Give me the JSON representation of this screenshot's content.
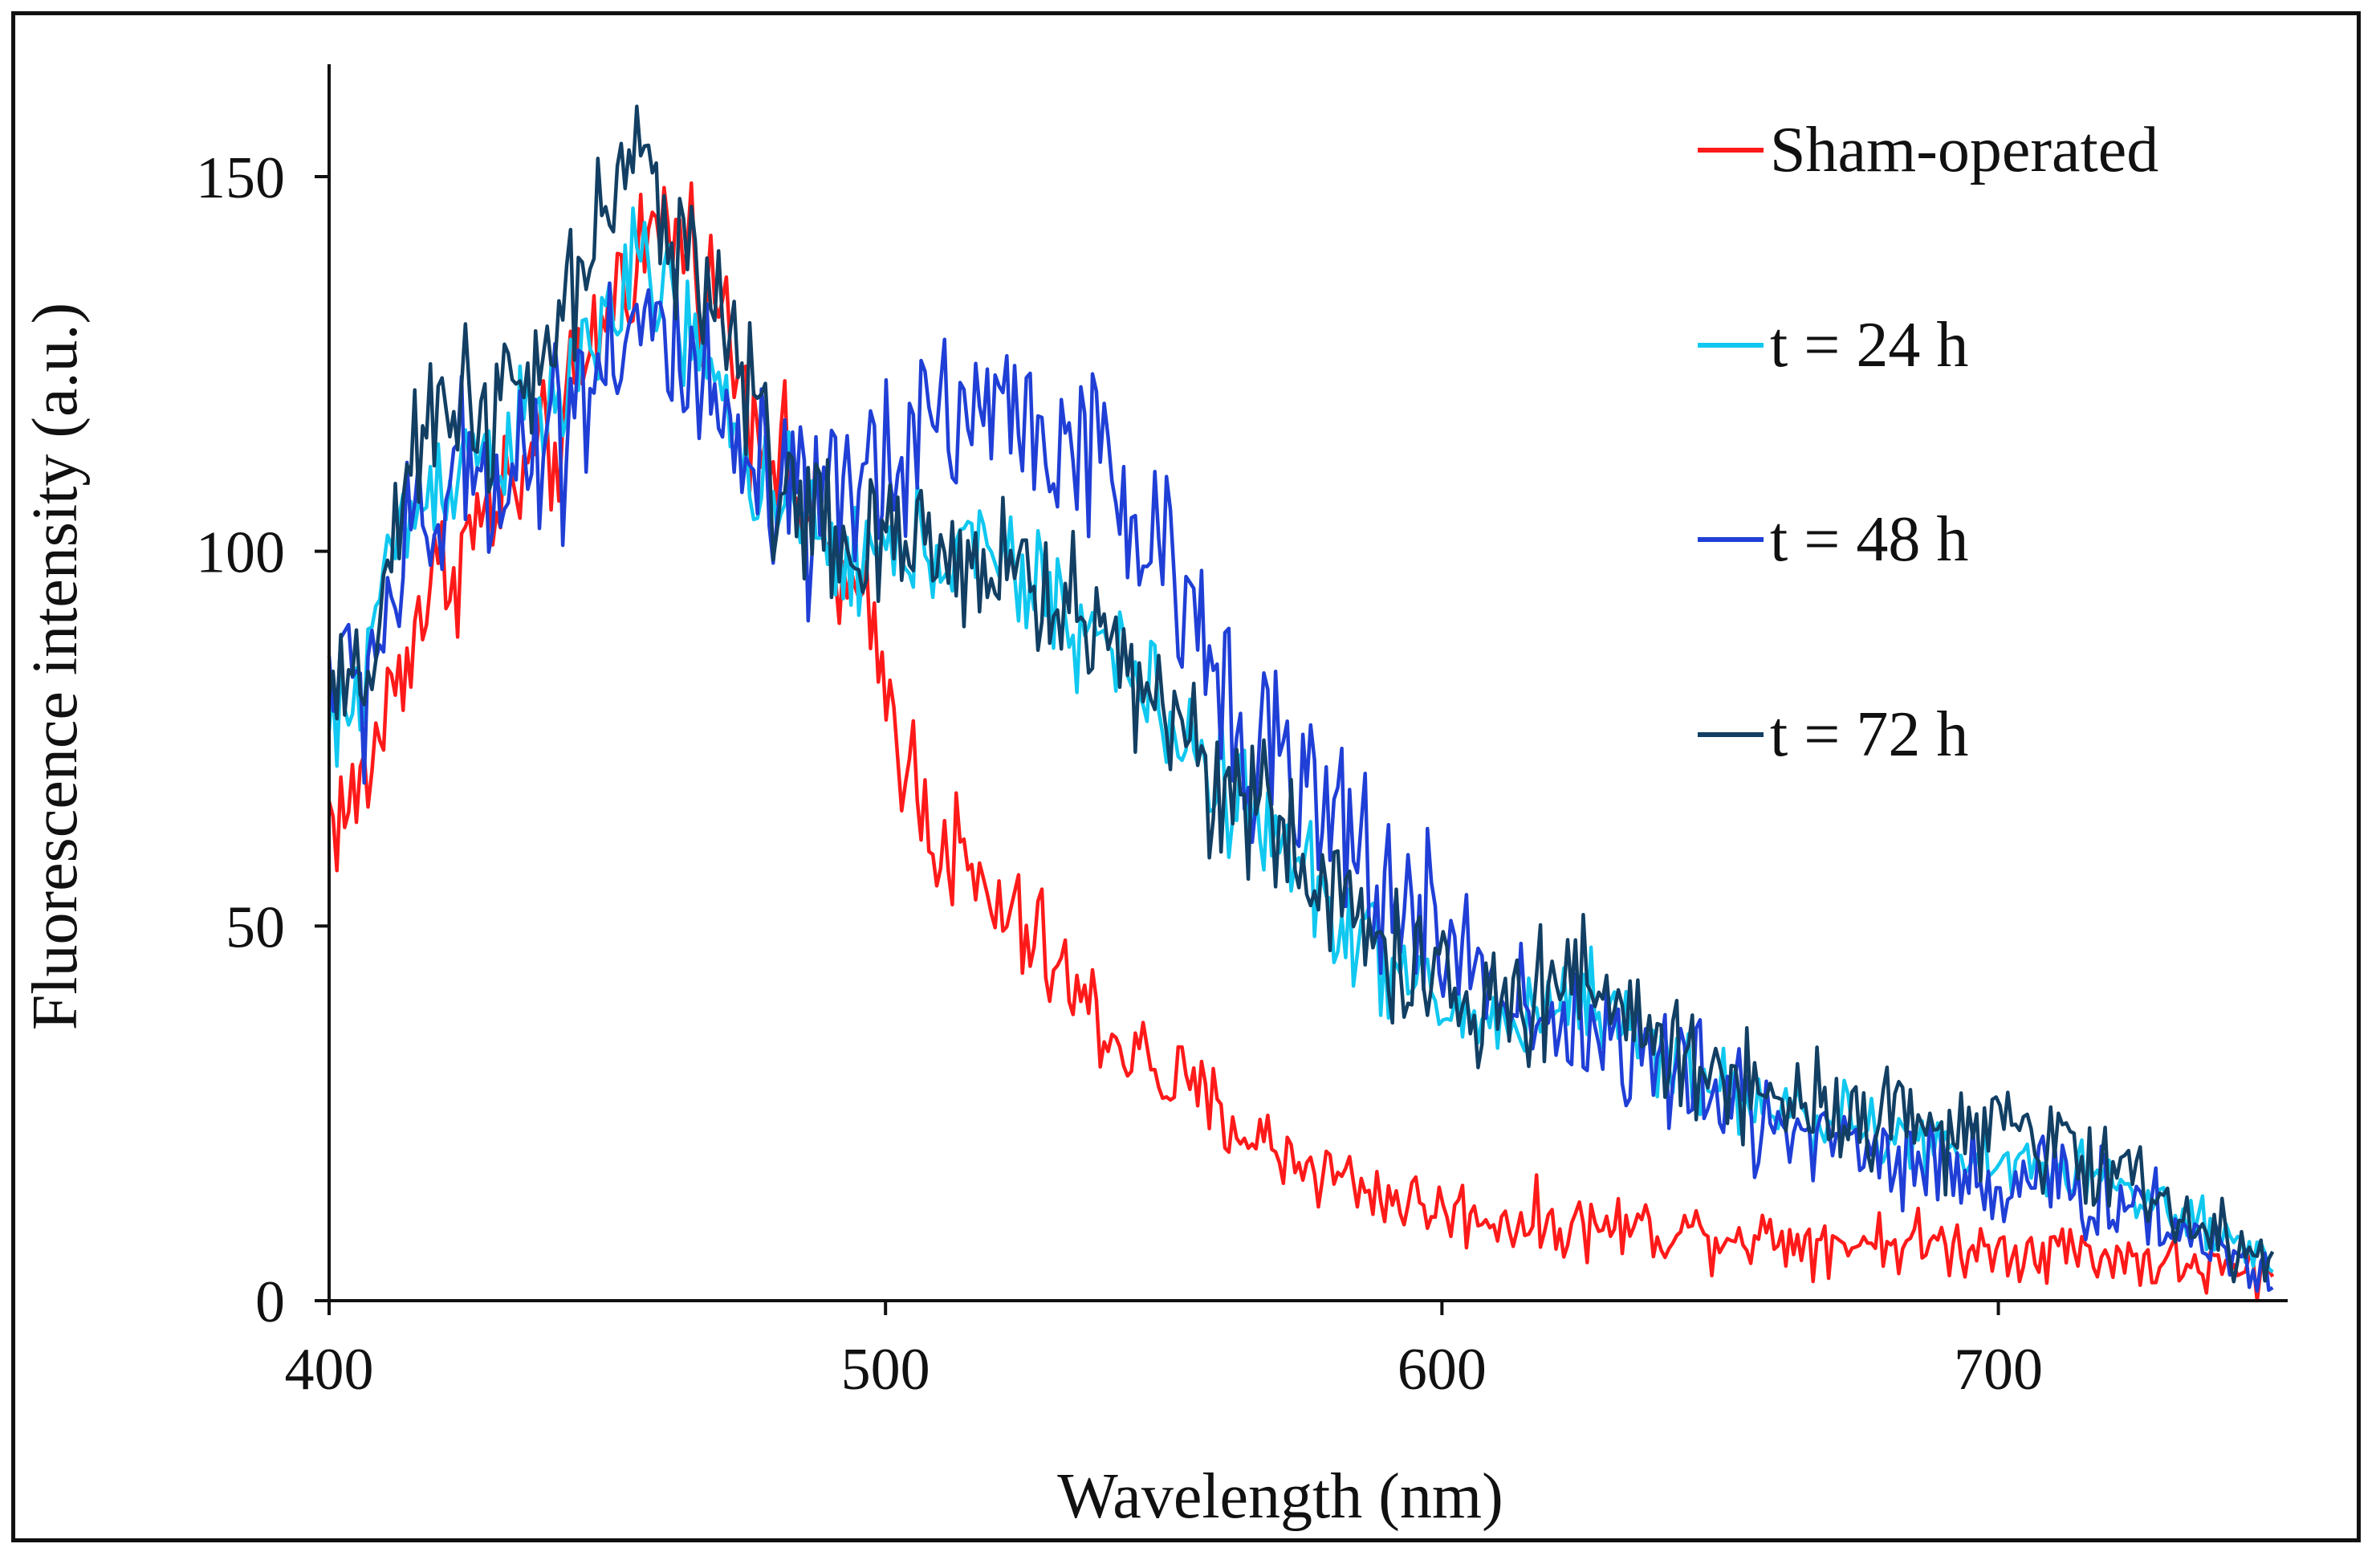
{
  "chart_data": {
    "type": "line",
    "xlabel": "Wavelength (nm)",
    "ylabel": "Fluorescence intensity (a.u.)",
    "xlim": [
      400,
      752
    ],
    "ylim": [
      0,
      165
    ],
    "xticks": [
      400,
      500,
      600,
      700
    ],
    "yticks": [
      0,
      50,
      100,
      150
    ],
    "grid": false,
    "legend_position": "top-right",
    "series": [
      {
        "name": "Sham-operated",
        "color": "#ff1a1a",
        "x": [
          400,
          405,
          410,
          415,
          420,
          430,
          440,
          445,
          450,
          455,
          460,
          465,
          470,
          475,
          480,
          485,
          490,
          495,
          500,
          505,
          510,
          515,
          520,
          525,
          530,
          535,
          540,
          545,
          550,
          560,
          570,
          580,
          590,
          600,
          610,
          620,
          630,
          640,
          650,
          660,
          670,
          680,
          690,
          700,
          710,
          720,
          730,
          740,
          750
        ],
        "values": [
          65,
          66,
          78,
          90,
          97,
          106,
          113,
          122,
          133,
          140,
          143,
          141,
          133,
          122,
          114,
          106,
          99,
          92,
          82,
          70,
          62,
          56,
          52,
          49,
          45,
          40,
          36,
          33,
          30,
          25,
          20,
          17,
          14,
          12,
          11,
          10,
          10,
          9.5,
          9,
          8.5,
          8,
          8,
          7.5,
          7,
          7,
          6,
          5,
          4,
          3
        ],
        "noise": 8
      },
      {
        "name": "t = 24 h",
        "color": "#10c8f0",
        "x": [
          400,
          405,
          410,
          415,
          420,
          425,
          430,
          440,
          445,
          450,
          455,
          460,
          465,
          470,
          475,
          480,
          485,
          490,
          495,
          500,
          505,
          510,
          515,
          520,
          525,
          530,
          535,
          540,
          545,
          550,
          560,
          570,
          580,
          590,
          600,
          610,
          620,
          625,
          630,
          640,
          650,
          660,
          670,
          680,
          690,
          700,
          710,
          720,
          730,
          740,
          750
        ],
        "values": [
          75,
          80,
          98,
          105,
          110,
          113,
          114,
          118,
          125,
          132,
          137,
          135,
          128,
          120,
          113,
          107,
          103,
          100,
          99,
          99,
          100,
          101,
          100,
          98,
          96,
          94,
          90,
          87,
          83,
          78,
          70,
          61,
          53,
          45,
          39,
          37,
          39,
          42,
          38,
          33,
          28,
          26,
          24,
          22,
          20,
          18,
          18,
          16,
          12,
          8,
          4
        ],
        "noise": 7
      },
      {
        "name": "t = 48 h",
        "color": "#1f3fd6",
        "x": [
          400,
          405,
          410,
          415,
          420,
          425,
          430,
          440,
          445,
          450,
          455,
          460,
          465,
          470,
          475,
          480,
          485,
          490,
          495,
          500,
          505,
          510,
          515,
          520,
          525,
          530,
          535,
          540,
          545,
          550,
          560,
          570,
          580,
          590,
          600,
          610,
          620,
          630,
          640,
          650,
          660,
          670,
          680,
          690,
          700,
          710,
          720,
          730,
          740,
          750
        ],
        "values": [
          85,
          80,
          92,
          100,
          105,
          110,
          112,
          115,
          122,
          128,
          131,
          128,
          122,
          115,
          110,
          106,
          103,
          104,
          108,
          113,
          117,
          119,
          119,
          119,
          118,
          116,
          113,
          109,
          103,
          97,
          85,
          72,
          63,
          55,
          48,
          42,
          38,
          35,
          31,
          27,
          24,
          22,
          20,
          18,
          16,
          15,
          14,
          11,
          7,
          3
        ],
        "noise": 11
      },
      {
        "name": "t = 72 h",
        "color": "#123f63",
        "x": [
          400,
          405,
          410,
          415,
          420,
          425,
          430,
          440,
          445,
          450,
          455,
          460,
          465,
          470,
          475,
          480,
          485,
          490,
          495,
          500,
          505,
          510,
          515,
          520,
          525,
          530,
          535,
          540,
          545,
          550,
          560,
          570,
          580,
          590,
          600,
          610,
          620,
          625,
          630,
          640,
          650,
          660,
          670,
          680,
          690,
          700,
          710,
          720,
          730,
          740,
          750
        ],
        "values": [
          80,
          78,
          96,
          108,
          120,
          122,
          118,
          125,
          138,
          146,
          150,
          147,
          141,
          132,
          122,
          112,
          106,
          101,
          99,
          99,
          100,
          101,
          100,
          98,
          96,
          94,
          91,
          88,
          84,
          79,
          71,
          62,
          54,
          47,
          41,
          38,
          41,
          46,
          40,
          34,
          30,
          28,
          26,
          25,
          23,
          22,
          21,
          18,
          13,
          8,
          4
        ],
        "noise": 9
      }
    ]
  }
}
